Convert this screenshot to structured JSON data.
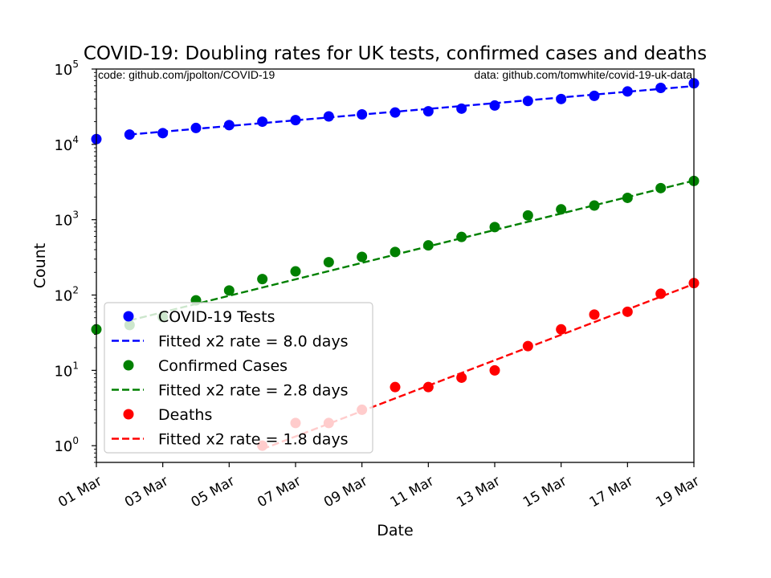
{
  "chart_data": {
    "type": "scatter",
    "title": "COVID-19: Doubling rates for UK tests, confirmed cases and deaths",
    "xlabel": "Date",
    "ylabel": "Count",
    "yscale": "log",
    "ylim": [
      0.6,
      100000
    ],
    "xlim": [
      "2020-03-01",
      "2020-03-19"
    ],
    "x_ticks": [
      "01 Mar",
      "03 Mar",
      "05 Mar",
      "07 Mar",
      "09 Mar",
      "11 Mar",
      "13 Mar",
      "15 Mar",
      "17 Mar",
      "19 Mar"
    ],
    "y_ticks": [
      {
        "base": "10",
        "exp": "0"
      },
      {
        "base": "10",
        "exp": "1"
      },
      {
        "base": "10",
        "exp": "2"
      },
      {
        "base": "10",
        "exp": "3"
      },
      {
        "base": "10",
        "exp": "4"
      },
      {
        "base": "10",
        "exp": "5"
      }
    ],
    "annotations": {
      "left": "code: github.com/jpolton/COVID-19",
      "right": "data: github.com/tomwhite/covid-19-uk-data"
    },
    "legend_position": "lower-left",
    "series": [
      {
        "name": "COVID-19 Tests",
        "color": "#0000ff",
        "fit_label": "Fitted x2 rate = 8.0 days",
        "fit": [
          [
            "2020-03-02",
            13500
          ],
          [
            "2020-03-19",
            59500
          ]
        ],
        "points": [
          [
            "2020-03-01",
            11750
          ],
          [
            "2020-03-02",
            13500
          ],
          [
            "2020-03-03",
            14100
          ],
          [
            "2020-03-04",
            16500
          ],
          [
            "2020-03-05",
            18000
          ],
          [
            "2020-03-06",
            20000
          ],
          [
            "2020-03-07",
            21000
          ],
          [
            "2020-03-08",
            23500
          ],
          [
            "2020-03-09",
            25000
          ],
          [
            "2020-03-10",
            26500
          ],
          [
            "2020-03-11",
            27500
          ],
          [
            "2020-03-12",
            29800
          ],
          [
            "2020-03-13",
            32800
          ],
          [
            "2020-03-14",
            37700
          ],
          [
            "2020-03-15",
            40000
          ],
          [
            "2020-03-16",
            44100
          ],
          [
            "2020-03-17",
            50400
          ],
          [
            "2020-03-18",
            56200
          ],
          [
            "2020-03-19",
            64600
          ]
        ]
      },
      {
        "name": "Confirmed Cases",
        "color": "#008000",
        "fit_label": "Fitted x2 rate = 2.8 days",
        "fit": [
          [
            "2020-03-02",
            46
          ],
          [
            "2020-03-19",
            3300
          ]
        ],
        "points": [
          [
            "2020-03-01",
            35
          ],
          [
            "2020-03-02",
            40
          ],
          [
            "2020-03-03",
            51
          ],
          [
            "2020-03-04",
            85
          ],
          [
            "2020-03-05",
            115
          ],
          [
            "2020-03-06",
            163
          ],
          [
            "2020-03-07",
            206
          ],
          [
            "2020-03-08",
            273
          ],
          [
            "2020-03-09",
            321
          ],
          [
            "2020-03-10",
            373
          ],
          [
            "2020-03-11",
            456
          ],
          [
            "2020-03-12",
            590
          ],
          [
            "2020-03-13",
            798
          ],
          [
            "2020-03-14",
            1140
          ],
          [
            "2020-03-15",
            1372
          ],
          [
            "2020-03-16",
            1543
          ],
          [
            "2020-03-17",
            1950
          ],
          [
            "2020-03-18",
            2626
          ],
          [
            "2020-03-19",
            3269
          ]
        ]
      },
      {
        "name": "Deaths",
        "color": "#ff0000",
        "fit_label": "Fitted x2 rate = 1.8 days",
        "fit": [
          [
            "2020-03-06",
            0.9
          ],
          [
            "2020-03-19",
            140
          ]
        ],
        "points": [
          [
            "2020-03-06",
            1
          ],
          [
            "2020-03-07",
            2
          ],
          [
            "2020-03-08",
            2
          ],
          [
            "2020-03-09",
            3
          ],
          [
            "2020-03-10",
            6
          ],
          [
            "2020-03-11",
            6
          ],
          [
            "2020-03-12",
            8
          ],
          [
            "2020-03-13",
            10
          ],
          [
            "2020-03-14",
            21
          ],
          [
            "2020-03-15",
            35
          ],
          [
            "2020-03-16",
            55
          ],
          [
            "2020-03-17",
            60
          ],
          [
            "2020-03-18",
            104
          ],
          [
            "2020-03-19",
            144
          ]
        ]
      }
    ]
  }
}
